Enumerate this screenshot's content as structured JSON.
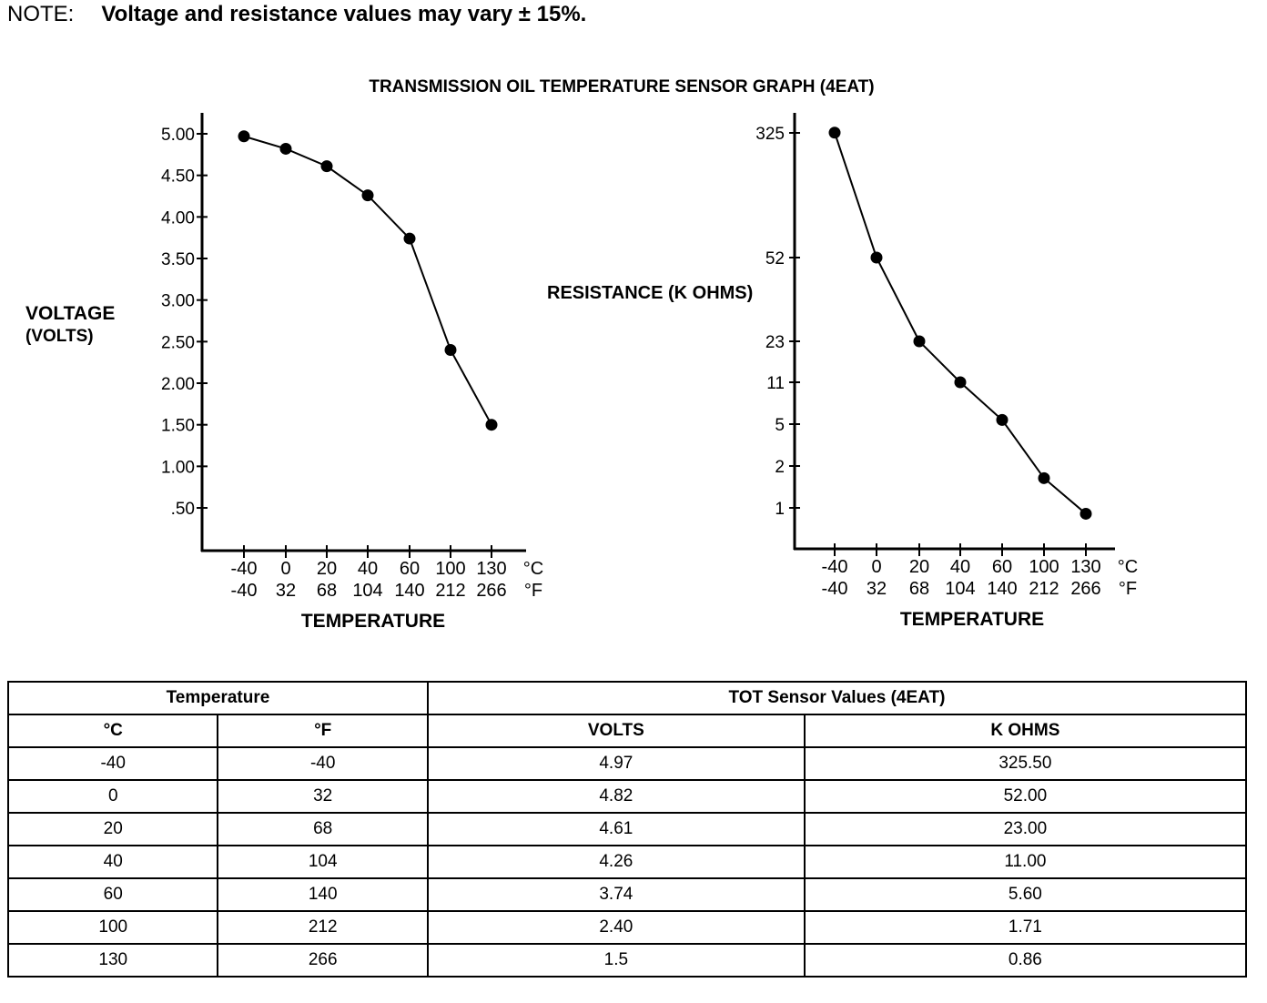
{
  "note": {
    "label": "NOTE:",
    "text": "Voltage and resistance values may vary ± 15%."
  },
  "chart_data": [
    {
      "type": "line",
      "title": "TRANSMISSION OIL TEMPERATURE SENSOR GRAPH (4EAT)",
      "ylabel": "VOLTAGE (VOLTS)",
      "xlabel": "TEMPERATURE",
      "categories_c": [
        "-40",
        "0",
        "20",
        "40",
        "60",
        "100",
        "130"
      ],
      "categories_f": [
        "-40",
        "32",
        "68",
        "104",
        "140",
        "212",
        "266"
      ],
      "unit_c": "°C",
      "unit_f": "°F",
      "yticks": [
        "5.00",
        "4.50",
        "4.00",
        "3.50",
        "3.00",
        "2.50",
        "2.00",
        "1.50",
        "1.00",
        ".50"
      ],
      "ylim": [
        0,
        5
      ],
      "values": [
        4.97,
        4.82,
        4.61,
        4.26,
        3.74,
        2.4,
        1.5
      ]
    },
    {
      "type": "line",
      "ylabel": "RESISTANCE (K OHMS)",
      "xlabel": "TEMPERATURE",
      "categories_c": [
        "-40",
        "0",
        "20",
        "40",
        "60",
        "100",
        "130"
      ],
      "categories_f": [
        "-40",
        "32",
        "68",
        "104",
        "140",
        "212",
        "266"
      ],
      "unit_c": "°C",
      "unit_f": "°F",
      "yticks": [
        "325",
        "52",
        "23",
        "11",
        "5",
        "2",
        "1"
      ],
      "yscale": "nonlinear",
      "values": [
        325.5,
        52.0,
        23.0,
        11.0,
        5.6,
        1.71,
        0.86
      ]
    }
  ],
  "table": {
    "group1": "Temperature",
    "group2": "TOT Sensor Values (4EAT)",
    "headers": [
      "°C",
      "°F",
      "VOLTS",
      "K OHMS"
    ],
    "rows": [
      [
        "-40",
        "-40",
        "4.97",
        "325.50"
      ],
      [
        "0",
        "32",
        "4.82",
        "52.00"
      ],
      [
        "20",
        "68",
        "4.61",
        "23.00"
      ],
      [
        "40",
        "104",
        "4.26",
        "11.00"
      ],
      [
        "60",
        "140",
        "3.74",
        "5.60"
      ],
      [
        "100",
        "212",
        "2.40",
        "1.71"
      ],
      [
        "130",
        "266",
        "1.5",
        "0.86"
      ]
    ]
  }
}
